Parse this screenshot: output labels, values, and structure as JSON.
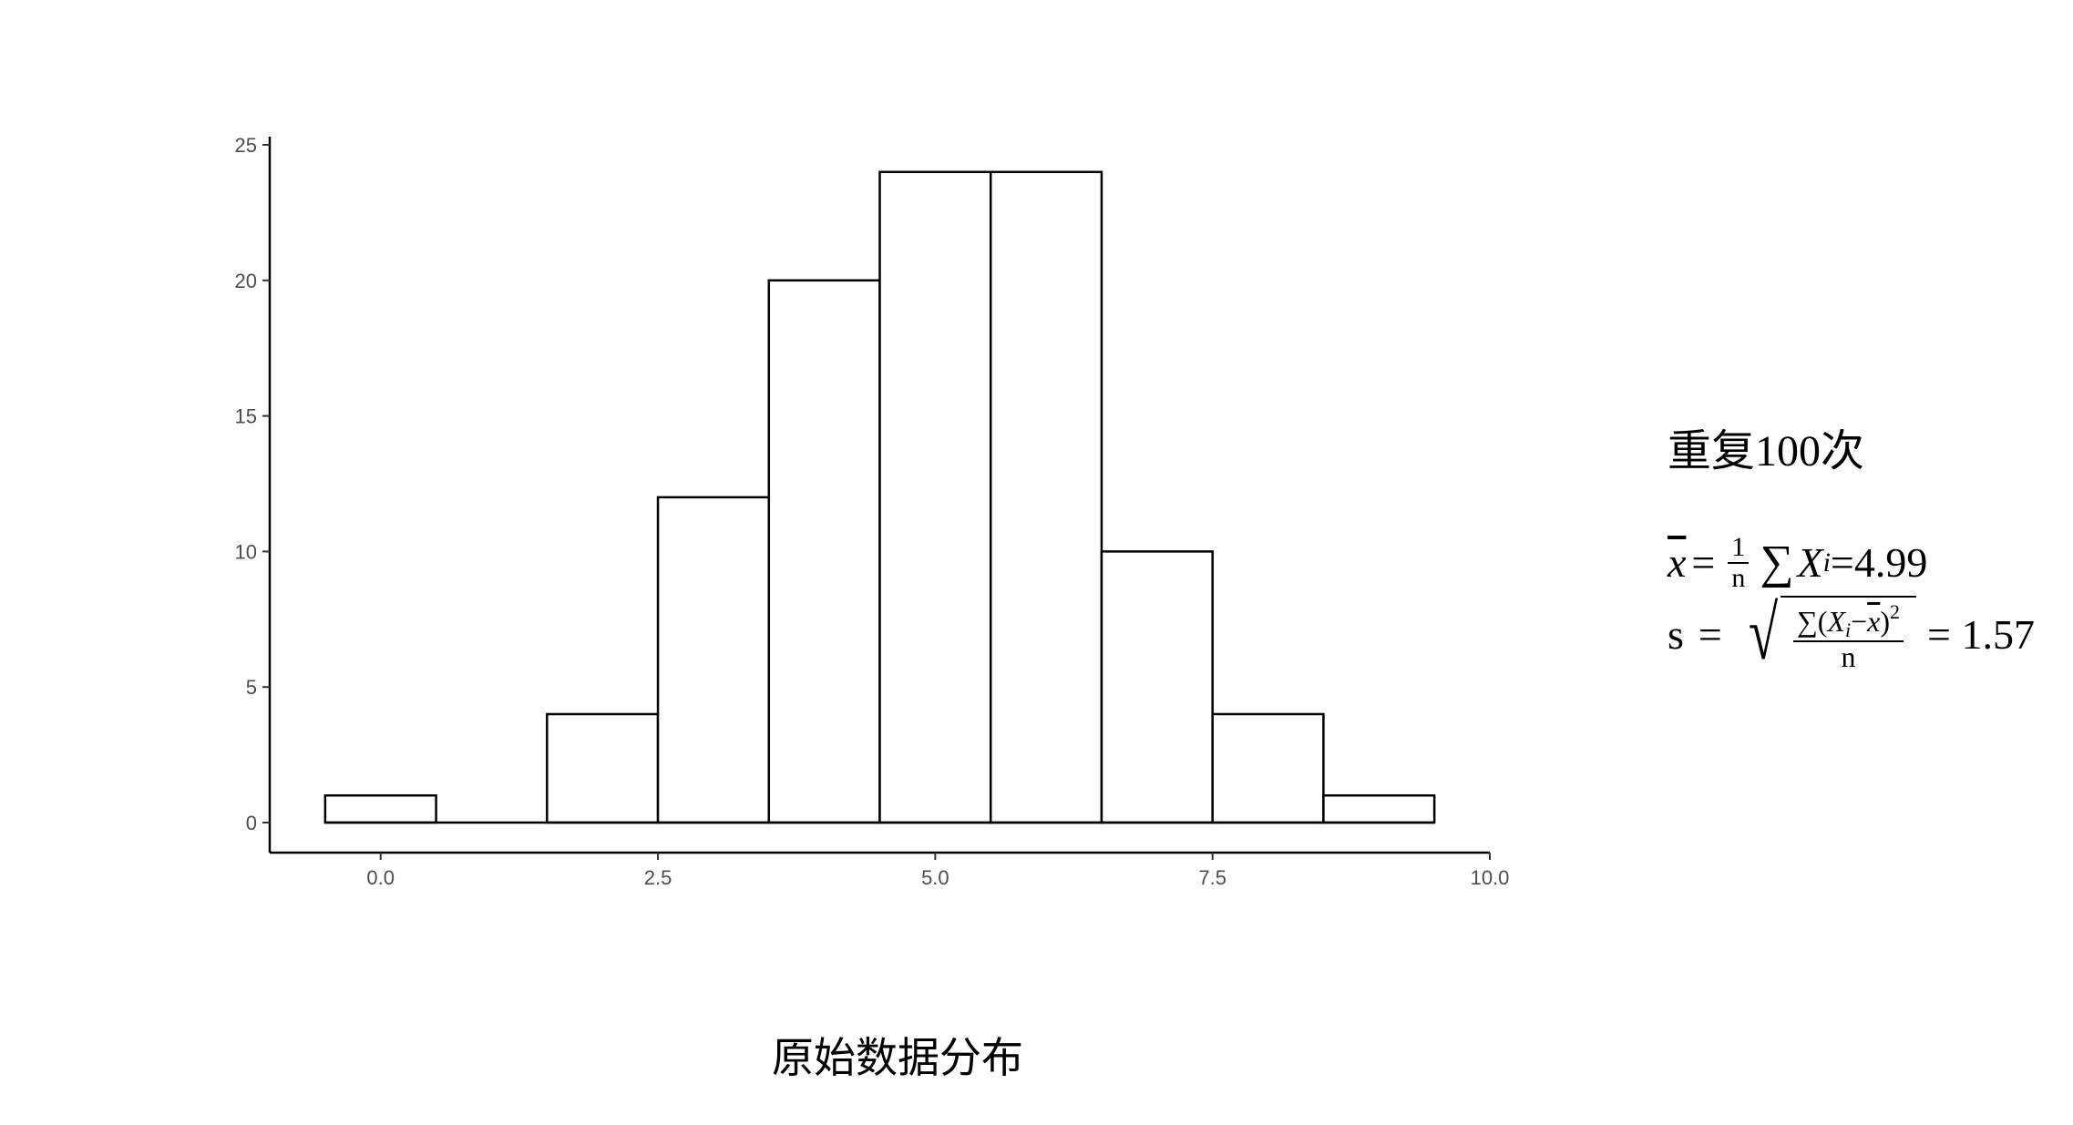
{
  "chart_data": {
    "type": "histogram",
    "title": "",
    "xlabel": "",
    "ylabel": "",
    "bins": [
      {
        "x0": -0.5,
        "x1": 0.5,
        "count": 1
      },
      {
        "x0": 0.5,
        "x1": 1.5,
        "count": 0
      },
      {
        "x0": 1.5,
        "x1": 2.5,
        "count": 4
      },
      {
        "x0": 2.5,
        "x1": 3.5,
        "count": 12
      },
      {
        "x0": 3.5,
        "x1": 4.5,
        "count": 20
      },
      {
        "x0": 4.5,
        "x1": 5.5,
        "count": 24
      },
      {
        "x0": 5.5,
        "x1": 6.5,
        "count": 24
      },
      {
        "x0": 6.5,
        "x1": 7.5,
        "count": 10
      },
      {
        "x0": 7.5,
        "x1": 8.5,
        "count": 4
      },
      {
        "x0": 8.5,
        "x1": 9.5,
        "count": 1
      }
    ],
    "xlim": [
      -1,
      10
    ],
    "ylim": [
      0,
      25
    ],
    "x_ticks": [
      0,
      2.5,
      5,
      7.5,
      10
    ],
    "x_tick_labels": [
      "0.0",
      "2.5",
      "5.0",
      "7.5",
      "10.0"
    ],
    "y_ticks": [
      0,
      5,
      10,
      15,
      20,
      25
    ],
    "y_tick_labels": [
      "0",
      "5",
      "10",
      "15",
      "20",
      "25"
    ],
    "bar_fill": "#ffffff",
    "bar_stroke": "#000000",
    "grid": false,
    "legend": "none"
  },
  "caption": "原始数据分布",
  "stats": {
    "title": "重复100次",
    "mean": {
      "symbol": "x",
      "equals": "=",
      "frac_num": "1",
      "frac_den": "n",
      "sum": "∑",
      "var": "X",
      "sub": "i",
      "result": "=4.99"
    },
    "sd": {
      "symbol": "s",
      "equals": "=",
      "inner_sum": "∑(",
      "inner_var": "X",
      "inner_sub": "i",
      "inner_minus": "−",
      "inner_xbar": "x",
      "inner_close": ")",
      "inner_pow": "2",
      "den": "n",
      "result": "= 1.57"
    }
  }
}
